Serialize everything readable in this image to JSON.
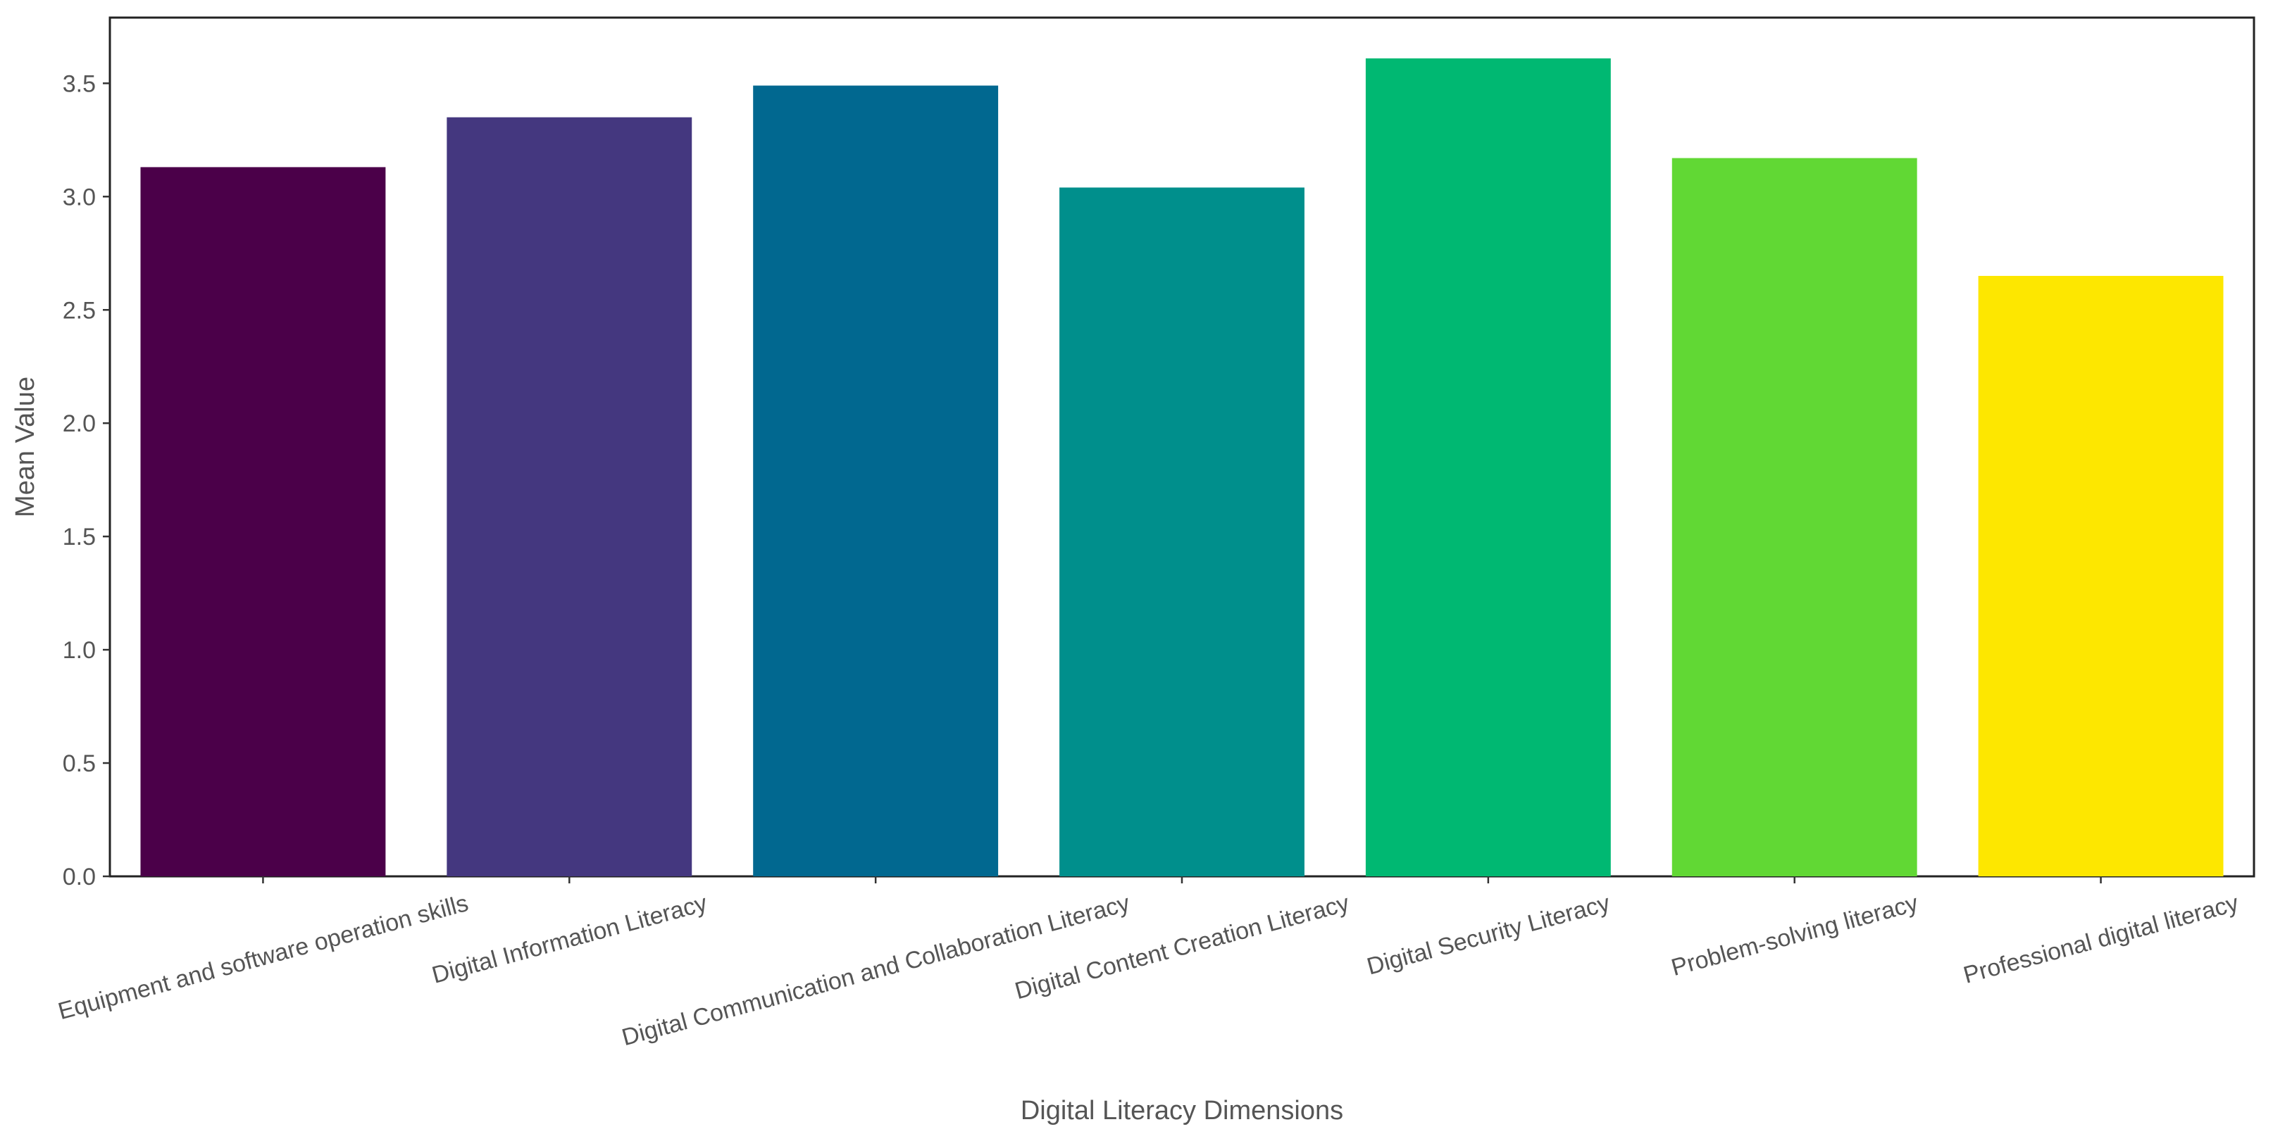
{
  "chart_data": {
    "type": "bar",
    "x_label": "Digital Literacy Dimensions",
    "y_label": "Mean Value",
    "categories": [
      "Equipment and software operation skills",
      "Digital Information Literacy",
      "Digital Communication and Collaboration Literacy",
      "Digital Content Creation Literacy",
      "Digital Security Literacy",
      "Problem-solving literacy",
      "Professional digital literacy"
    ],
    "values": [
      3.13,
      3.35,
      3.49,
      3.04,
      3.61,
      3.17,
      2.65
    ],
    "colors": [
      "#4b0049",
      "#44377f",
      "#016890",
      "#008f8c",
      "#00b872",
      "#61d834",
      "#fde700"
    ],
    "ylim": [
      0,
      3.79
    ],
    "yticks": [
      {
        "value": 0,
        "label": "0.0"
      },
      0.5,
      {
        "value": 1,
        "label": "1.0"
      },
      1.5,
      {
        "value": 2,
        "label": "2.0"
      },
      2.5,
      {
        "value": 3,
        "label": "3.0"
      },
      3.5
    ],
    "grid": false
  }
}
